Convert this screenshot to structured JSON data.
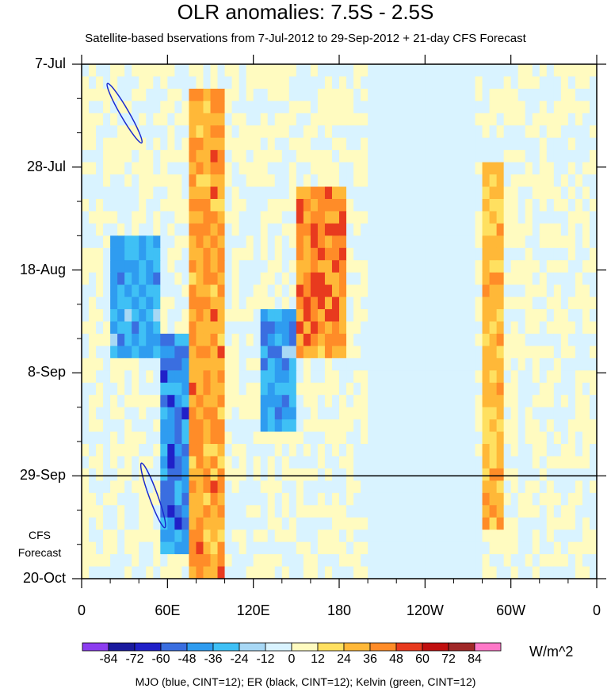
{
  "chart_data": {
    "type": "heatmap",
    "title": "OLR anomalies: 7.5S - 2.5S",
    "subtitle": "Satellite-based bservations from 7-Jul-2012 to 29-Sep-2012 + 21-day CFS Forecast",
    "x_ticks": [
      {
        "lon": 0,
        "label": "0"
      },
      {
        "lon": 60,
        "label": "60E"
      },
      {
        "lon": 120,
        "label": "120E"
      },
      {
        "lon": 180,
        "label": "180"
      },
      {
        "lon": 240,
        "label": "120W"
      },
      {
        "lon": 300,
        "label": "60W"
      },
      {
        "lon": 360,
        "label": "0"
      }
    ],
    "xlim": [
      0,
      360
    ],
    "y_ticks": [
      {
        "day": 0,
        "label": "7-Jul"
      },
      {
        "day": 21,
        "label": "28-Jul"
      },
      {
        "day": 42,
        "label": "18-Aug"
      },
      {
        "day": 63,
        "label": "8-Sep"
      },
      {
        "day": 84,
        "label": "29-Sep"
      },
      {
        "day": 105,
        "label": "20-Oct"
      }
    ],
    "ylim_days": [
      0,
      105
    ],
    "forecast_start_day": 84,
    "forecast_label_line1": "CFS",
    "forecast_label_line2": "Forecast",
    "colorbar": {
      "levels": [
        "-84",
        "-72",
        "-60",
        "-48",
        "-36",
        "-24",
        "-12",
        "0",
        "12",
        "24",
        "36",
        "48",
        "60",
        "72",
        "84"
      ],
      "colors": [
        "#8c3df0",
        "#1a1a9e",
        "#2020c8",
        "#3a6ee0",
        "#2f9cf0",
        "#3fc0f5",
        "#a8d8f5",
        "#d9f3ff",
        "#fffbc0",
        "#ffe060",
        "#ffb838",
        "#ff8c28",
        "#e83a1e",
        "#c01010",
        "#a02828",
        "#ff78c8"
      ],
      "units": "W/m^2"
    },
    "contour_note": "MJO (blue, CINT=12); ER (black, CINT=12); Kelvin (green, CINT=12)",
    "anomaly_features": [
      {
        "lon_min": 20,
        "lon_max": 55,
        "day_min": 35,
        "day_max": 60,
        "value": -40
      },
      {
        "lon_min": 55,
        "lon_max": 75,
        "day_min": 55,
        "day_max": 100,
        "value": -50
      },
      {
        "lon_min": 75,
        "lon_max": 100,
        "day_min": 5,
        "day_max": 105,
        "value": 40
      },
      {
        "lon_min": 125,
        "lon_max": 150,
        "day_min": 50,
        "day_max": 75,
        "value": -45
      },
      {
        "lon_min": 150,
        "lon_max": 185,
        "day_min": 25,
        "day_max": 60,
        "value": 45
      },
      {
        "lon_min": 280,
        "lon_max": 295,
        "day_min": 20,
        "day_max": 95,
        "value": 30
      }
    ],
    "mjo_contours": [
      {
        "lon": 30,
        "day": 10,
        "rx": 3,
        "ry": 7,
        "tilt": -30
      },
      {
        "lon": 50,
        "day": 88,
        "rx": 3,
        "ry": 7,
        "tilt": -20
      }
    ]
  }
}
